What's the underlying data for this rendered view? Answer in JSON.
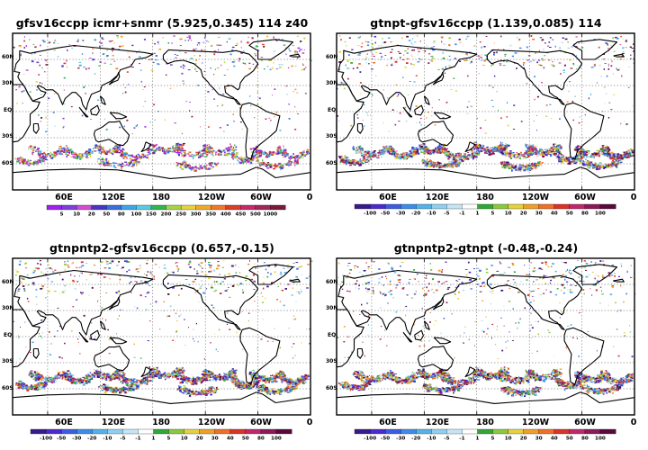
{
  "panels": [
    {
      "title": "gfsv16ccpp icmr+snmr (5.925,0.345) 114 z40",
      "lat_labels": [
        "60N",
        "30N",
        "EQ",
        "30S",
        "60S"
      ],
      "lon_labels": [
        "60E",
        "120E",
        "180",
        "120W",
        "60W",
        "0"
      ],
      "colorbar": {
        "labels": [
          "5",
          "10",
          "20",
          "50",
          "80",
          "100",
          "150",
          "200",
          "250",
          "300",
          "350",
          "400",
          "450",
          "500",
          "1000"
        ],
        "colors": [
          "#a020f0",
          "#7b3fe0",
          "#d24dd2",
          "#4a34c8",
          "#3d6fe0",
          "#3ba6e8",
          "#56cce0",
          "#32b450",
          "#a8d24a",
          "#e6d23c",
          "#f0aa28",
          "#f07828",
          "#dc3c28",
          "#c8286e",
          "#a0285a",
          "#7a1a3a"
        ]
      }
    },
    {
      "title": "gtnpt-gfsv16ccpp (1.139,0.085) 114",
      "lat_labels": [
        "60N",
        "30N",
        "EQ",
        "30S",
        "60S"
      ],
      "lon_labels": [
        "60E",
        "120E",
        "180",
        "120W",
        "60W",
        "0"
      ],
      "colorbar": {
        "labels": [
          "-100",
          "-50",
          "-30",
          "-20",
          "-10",
          "-5",
          "-1",
          "1",
          "5",
          "10",
          "20",
          "30",
          "40",
          "50",
          "80",
          "100"
        ],
        "colors": [
          "#3a1a8a",
          "#4b2ad0",
          "#3b5ee0",
          "#3c8ce8",
          "#52b2ea",
          "#8fd0f0",
          "#c6e6f8",
          "#ffffff",
          "#2fa838",
          "#8cc83c",
          "#e6d23c",
          "#f0a028",
          "#f06e28",
          "#dc3228",
          "#c0286a",
          "#8a1a5a",
          "#5a0a3a"
        ]
      }
    },
    {
      "title": "gtnpntp2-gfsv16ccpp (0.657,-0.15)",
      "lat_labels": [
        "60N",
        "30N",
        "EQ",
        "30S",
        "60S"
      ],
      "lon_labels": [
        "60E",
        "120E",
        "180",
        "120W",
        "60W",
        "0"
      ],
      "colorbar": {
        "labels": [
          "-100",
          "-50",
          "-30",
          "-20",
          "-10",
          "-5",
          "-1",
          "1",
          "5",
          "10",
          "20",
          "30",
          "40",
          "50",
          "80",
          "100"
        ],
        "colors": [
          "#3a1a8a",
          "#4b2ad0",
          "#3b5ee0",
          "#3c8ce8",
          "#52b2ea",
          "#8fd0f0",
          "#c6e6f8",
          "#ffffff",
          "#2fa838",
          "#8cc83c",
          "#e6d23c",
          "#f0a028",
          "#f06e28",
          "#dc3228",
          "#c0286a",
          "#8a1a5a",
          "#5a0a3a"
        ]
      }
    },
    {
      "title": "gtnpntp2-gtnpt (-0.48,-0.24)",
      "lat_labels": [
        "60N",
        "30N",
        "EQ",
        "30S",
        "60S"
      ],
      "lon_labels": [
        "60E",
        "120E",
        "180",
        "120W",
        "60W",
        "0"
      ],
      "colorbar": {
        "labels": [
          "-100",
          "-50",
          "-30",
          "-20",
          "-10",
          "-5",
          "-1",
          "1",
          "5",
          "10",
          "20",
          "30",
          "40",
          "50",
          "80",
          "100"
        ],
        "colors": [
          "#3a1a8a",
          "#4b2ad0",
          "#3b5ee0",
          "#3c8ce8",
          "#52b2ea",
          "#8fd0f0",
          "#c6e6f8",
          "#ffffff",
          "#2fa838",
          "#8cc83c",
          "#e6d23c",
          "#f0a028",
          "#f06e28",
          "#dc3228",
          "#c0286a",
          "#8a1a5a",
          "#5a0a3a"
        ]
      }
    }
  ]
}
